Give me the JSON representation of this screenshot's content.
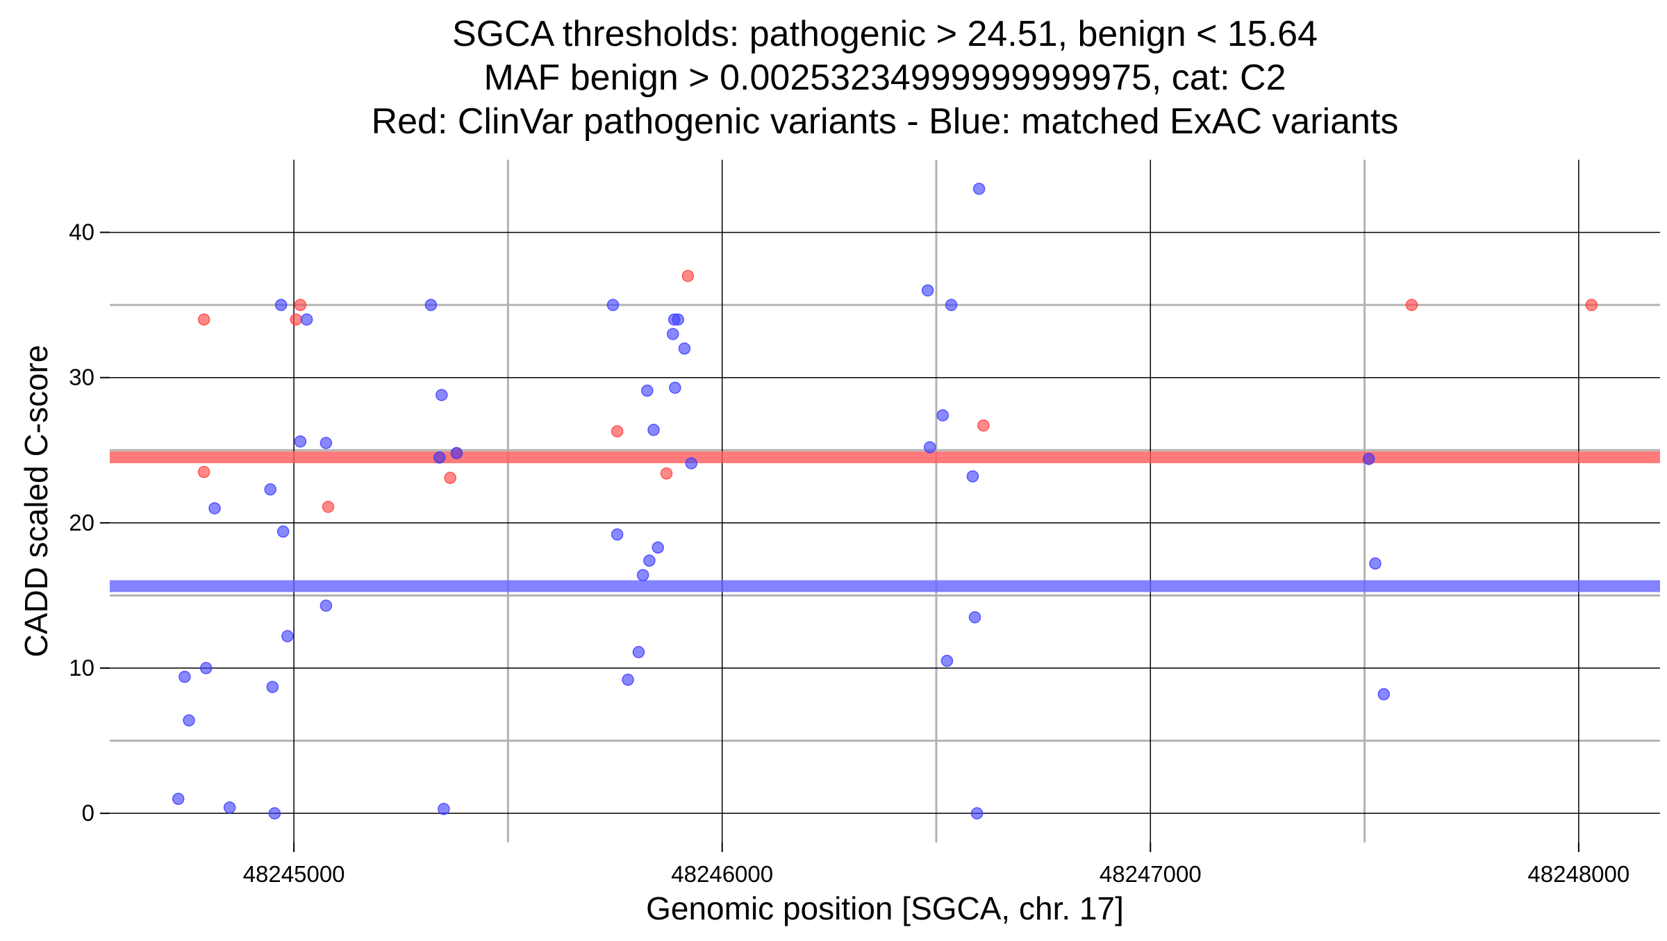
{
  "chart_data": {
    "type": "scatter",
    "title_lines": [
      "SGCA thresholds: pathogenic > 24.51, benign < 15.64",
      "MAF benign > 0.00253234999999999975, cat: C2",
      "Red: ClinVar pathogenic variants - Blue: matched ExAC variants"
    ],
    "xlabel": "Genomic position [SGCA, chr. 17]",
    "ylabel": "CADD scaled C-score",
    "xlim": [
      48244570,
      48248190
    ],
    "ylim": [
      -2,
      45
    ],
    "x_ticks": [
      48245000,
      48246000,
      48247000,
      48248000
    ],
    "x_tick_labels": [
      "48245000",
      "48246000",
      "48247000",
      "48248000"
    ],
    "x_minor_grid": [
      48245500,
      48246500,
      48247500
    ],
    "y_ticks": [
      0,
      10,
      20,
      30,
      40
    ],
    "y_tick_labels": [
      "0",
      "10",
      "20",
      "30",
      "40"
    ],
    "y_minor_grid": [
      5,
      15,
      25,
      35
    ],
    "grid": true,
    "legend": "none",
    "thresholds": [
      {
        "y": 24.51,
        "color": "#ff5a5a"
      },
      {
        "y": 15.64,
        "color": "#6464ff"
      }
    ],
    "colors": {
      "pathogenic": "#ff4040",
      "benign": "#4040ff"
    },
    "series": [
      {
        "key": "pathogenic",
        "points": [
          [
            48244790,
            34.0
          ],
          [
            48244790,
            23.5
          ],
          [
            48245005,
            34.0
          ],
          [
            48245015,
            35.0
          ],
          [
            48245080,
            21.1
          ],
          [
            48245340,
            24.5
          ],
          [
            48245365,
            23.1
          ],
          [
            48245380,
            24.8
          ],
          [
            48245755,
            26.3
          ],
          [
            48245870,
            23.4
          ],
          [
            48245920,
            37.0
          ],
          [
            48246610,
            26.7
          ],
          [
            48247510,
            24.4
          ],
          [
            48247610,
            35.0
          ],
          [
            48248030,
            35.0
          ]
        ]
      },
      {
        "key": "benign",
        "points": [
          [
            48244730,
            1.0
          ],
          [
            48244745,
            9.4
          ],
          [
            48244755,
            6.4
          ],
          [
            48244795,
            10.0
          ],
          [
            48244815,
            21.0
          ],
          [
            48244850,
            0.4
          ],
          [
            48244945,
            22.3
          ],
          [
            48244950,
            8.7
          ],
          [
            48244955,
            0.0
          ],
          [
            48244970,
            35.0
          ],
          [
            48244975,
            19.4
          ],
          [
            48244985,
            12.2
          ],
          [
            48245015,
            25.6
          ],
          [
            48245030,
            34.0
          ],
          [
            48245075,
            25.5
          ],
          [
            48245075,
            14.3
          ],
          [
            48245320,
            35.0
          ],
          [
            48245340,
            24.5
          ],
          [
            48245345,
            28.8
          ],
          [
            48245350,
            0.3
          ],
          [
            48245380,
            24.8
          ],
          [
            48245745,
            35.0
          ],
          [
            48245755,
            19.2
          ],
          [
            48245780,
            9.2
          ],
          [
            48245805,
            11.1
          ],
          [
            48245815,
            16.4
          ],
          [
            48245825,
            29.1
          ],
          [
            48245830,
            17.4
          ],
          [
            48245840,
            26.4
          ],
          [
            48245850,
            18.3
          ],
          [
            48245885,
            33.0
          ],
          [
            48245890,
            29.3
          ],
          [
            48245888,
            34.0
          ],
          [
            48245897,
            34.0
          ],
          [
            48245912,
            32.0
          ],
          [
            48245928,
            24.1
          ],
          [
            48246480,
            36.0
          ],
          [
            48246485,
            25.2
          ],
          [
            48246515,
            27.4
          ],
          [
            48246525,
            10.5
          ],
          [
            48246535,
            35.0
          ],
          [
            48246585,
            23.2
          ],
          [
            48246590,
            13.5
          ],
          [
            48246595,
            0.0
          ],
          [
            48246600,
            43.0
          ],
          [
            48247510,
            24.4
          ],
          [
            48247525,
            17.2
          ],
          [
            48247545,
            8.2
          ]
        ]
      }
    ]
  }
}
